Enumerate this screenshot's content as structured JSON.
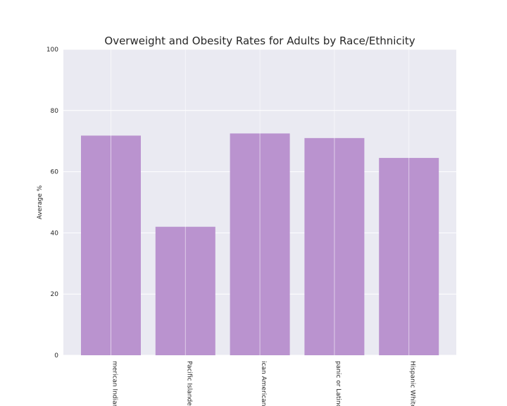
{
  "chart_data": {
    "type": "bar",
    "title": "Overweight and Obesity Rates for Adults by Race/Ethnicity",
    "xlabel": "",
    "ylabel": "Average %",
    "ylim": [
      0,
      100
    ],
    "yticks": [
      "0",
      "20",
      "40",
      "60",
      "80",
      "100"
    ],
    "categories": [
      "American Indian",
      "Pacific Islander",
      "African American",
      "Hispanic or Latino",
      "Non-Hispanic White"
    ],
    "visible_category_labels": [
      "merican Indian",
      "Pacific Islander",
      "ican American",
      "panic or Latino",
      "Hispanic White"
    ],
    "values": [
      71.8,
      42.0,
      72.5,
      71.0,
      64.5
    ],
    "grid": true,
    "bar_color": "#ba93cf",
    "background_color": "#eaeaf2",
    "grid_color": "#ffffff"
  }
}
